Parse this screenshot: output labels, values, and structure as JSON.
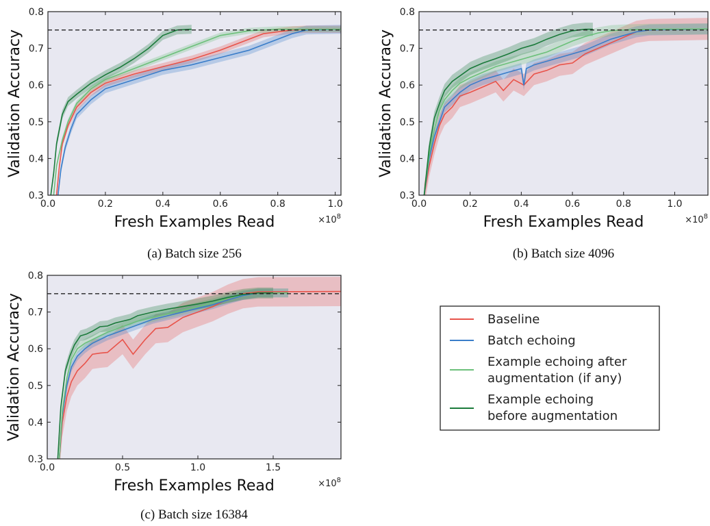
{
  "legend": {
    "items": [
      {
        "label_lines": [
          "Baseline"
        ],
        "color": "#e8534a"
      },
      {
        "label_lines": [
          "Batch echoing"
        ],
        "color": "#3a7dc9"
      },
      {
        "label_lines": [
          "Example echoing after",
          "augmentation (if any)"
        ],
        "color": "#6cc07a"
      },
      {
        "label_lines": [
          "Example echoing",
          "before augmentation"
        ],
        "color": "#1a7a3a"
      }
    ]
  },
  "colors": {
    "background": "#e8e8f1",
    "target_line": "#222222"
  },
  "chart_data": [
    {
      "type": "line",
      "caption": "(a) Batch size 256",
      "xlabel": "Fresh Examples Read",
      "ylabel": "Validation Accuracy",
      "x_exponent": "×10",
      "x_exponent_power": "8",
      "xlim": [
        0.0,
        1.02
      ],
      "ylim": [
        0.3,
        0.8
      ],
      "xticks": [
        0.0,
        0.2,
        0.4,
        0.6,
        0.8,
        1.0
      ],
      "xtick_labels": [
        "0.0",
        "0.2",
        "0.4",
        "0.6",
        "0.8",
        "1.0"
      ],
      "yticks": [
        0.3,
        0.4,
        0.5,
        0.6,
        0.7,
        0.8
      ],
      "ytick_labels": [
        "0.3",
        "0.4",
        "0.5",
        "0.6",
        "0.7",
        "0.8"
      ],
      "target_accuracy": 0.75,
      "series": [
        {
          "color": "#e8534a",
          "x": [
            0.03,
            0.04,
            0.05,
            0.07,
            0.1,
            0.15,
            0.2,
            0.3,
            0.4,
            0.5,
            0.6,
            0.7,
            0.75,
            0.8,
            0.85,
            0.9,
            1.02
          ],
          "y": [
            0.3,
            0.38,
            0.44,
            0.49,
            0.54,
            0.58,
            0.605,
            0.63,
            0.65,
            0.67,
            0.695,
            0.725,
            0.74,
            0.745,
            0.75,
            0.752,
            0.752
          ],
          "band": 0.01
        },
        {
          "color": "#3a7dc9",
          "x": [
            0.035,
            0.045,
            0.06,
            0.08,
            0.1,
            0.15,
            0.2,
            0.3,
            0.4,
            0.5,
            0.6,
            0.7,
            0.8,
            0.85,
            0.9,
            1.02
          ],
          "y": [
            0.3,
            0.37,
            0.43,
            0.48,
            0.52,
            0.56,
            0.59,
            0.615,
            0.64,
            0.655,
            0.675,
            0.695,
            0.725,
            0.74,
            0.75,
            0.752
          ],
          "band": 0.012
        },
        {
          "color": "#6cc07a",
          "x": [
            0.02,
            0.03,
            0.05,
            0.07,
            0.1,
            0.15,
            0.2,
            0.3,
            0.4,
            0.5,
            0.55,
            0.6,
            0.7,
            0.75,
            0.8,
            0.9,
            1.02
          ],
          "y": [
            0.3,
            0.38,
            0.45,
            0.5,
            0.55,
            0.59,
            0.615,
            0.645,
            0.675,
            0.705,
            0.72,
            0.735,
            0.748,
            0.75,
            0.752,
            0.752,
            0.752
          ],
          "band": 0.008
        },
        {
          "color": "#1a7a3a",
          "x": [
            0.01,
            0.02,
            0.03,
            0.05,
            0.07,
            0.1,
            0.15,
            0.2,
            0.25,
            0.3,
            0.35,
            0.4,
            0.45,
            0.5
          ],
          "y": [
            0.3,
            0.36,
            0.44,
            0.52,
            0.555,
            0.575,
            0.605,
            0.628,
            0.648,
            0.672,
            0.7,
            0.735,
            0.75,
            0.752
          ],
          "band": 0.012
        }
      ]
    },
    {
      "type": "line",
      "caption": "(b) Batch size 4096",
      "xlabel": "Fresh Examples Read",
      "ylabel": "Validation Accuracy",
      "x_exponent": "×10",
      "x_exponent_power": "8",
      "xlim": [
        0.0,
        1.13
      ],
      "ylim": [
        0.3,
        0.8
      ],
      "xticks": [
        0.0,
        0.2,
        0.4,
        0.6,
        0.8,
        1.0
      ],
      "xtick_labels": [
        "0.0",
        "0.2",
        "0.4",
        "0.6",
        "0.8",
        "1.0"
      ],
      "yticks": [
        0.3,
        0.4,
        0.5,
        0.6,
        0.7,
        0.8
      ],
      "ytick_labels": [
        "0.3",
        "0.4",
        "0.5",
        "0.6",
        "0.7",
        "0.8"
      ],
      "target_accuracy": 0.75,
      "series": [
        {
          "color": "#e8534a",
          "x": [
            0.02,
            0.04,
            0.06,
            0.08,
            0.1,
            0.13,
            0.16,
            0.2,
            0.25,
            0.3,
            0.33,
            0.37,
            0.41,
            0.45,
            0.5,
            0.55,
            0.6,
            0.65,
            0.7,
            0.75,
            0.8,
            0.85,
            0.9,
            1.13
          ],
          "y": [
            0.3,
            0.38,
            0.44,
            0.49,
            0.52,
            0.54,
            0.57,
            0.58,
            0.595,
            0.61,
            0.585,
            0.615,
            0.6,
            0.63,
            0.64,
            0.655,
            0.66,
            0.685,
            0.7,
            0.715,
            0.73,
            0.745,
            0.75,
            0.753
          ],
          "band": 0.03
        },
        {
          "color": "#3a7dc9",
          "x": [
            0.02,
            0.04,
            0.06,
            0.08,
            0.1,
            0.13,
            0.16,
            0.2,
            0.25,
            0.3,
            0.35,
            0.4,
            0.41,
            0.42,
            0.45,
            0.5,
            0.55,
            0.6,
            0.65,
            0.7,
            0.75,
            0.8,
            0.85,
            0.9,
            1.13
          ],
          "y": [
            0.3,
            0.4,
            0.46,
            0.5,
            0.54,
            0.56,
            0.58,
            0.6,
            0.615,
            0.625,
            0.635,
            0.645,
            0.6,
            0.645,
            0.655,
            0.665,
            0.675,
            0.685,
            0.695,
            0.71,
            0.725,
            0.735,
            0.745,
            0.75,
            0.753
          ],
          "band": 0.015
        },
        {
          "color": "#6cc07a",
          "x": [
            0.02,
            0.04,
            0.06,
            0.08,
            0.1,
            0.13,
            0.16,
            0.2,
            0.25,
            0.3,
            0.35,
            0.4,
            0.45,
            0.5,
            0.55,
            0.6,
            0.65,
            0.7,
            0.75,
            0.8,
            0.9,
            1.13
          ],
          "y": [
            0.3,
            0.41,
            0.48,
            0.53,
            0.56,
            0.585,
            0.605,
            0.62,
            0.635,
            0.65,
            0.66,
            0.67,
            0.68,
            0.69,
            0.705,
            0.72,
            0.732,
            0.742,
            0.748,
            0.75,
            0.752,
            0.753
          ],
          "band": 0.015
        },
        {
          "color": "#1a7a3a",
          "x": [
            0.02,
            0.04,
            0.06,
            0.08,
            0.1,
            0.13,
            0.16,
            0.2,
            0.25,
            0.3,
            0.35,
            0.4,
            0.45,
            0.5,
            0.55,
            0.6,
            0.65,
            0.68
          ],
          "y": [
            0.3,
            0.43,
            0.51,
            0.55,
            0.585,
            0.61,
            0.625,
            0.645,
            0.66,
            0.672,
            0.685,
            0.7,
            0.71,
            0.725,
            0.738,
            0.748,
            0.752,
            0.752
          ],
          "band": 0.018
        }
      ]
    },
    {
      "type": "line",
      "caption": "(c) Batch size 16384",
      "xlabel": "Fresh Examples Read",
      "ylabel": "Validation Accuracy",
      "x_exponent": "×10",
      "x_exponent_power": "8",
      "xlim": [
        0.0,
        1.95
      ],
      "ylim": [
        0.3,
        0.8
      ],
      "xticks": [
        0.0,
        0.5,
        1.0,
        1.5
      ],
      "xtick_labels": [
        "0.0",
        "0.5",
        "1.0",
        "1.5"
      ],
      "yticks": [
        0.3,
        0.4,
        0.5,
        0.6,
        0.7,
        0.8
      ],
      "ytick_labels": [
        "0.3",
        "0.4",
        "0.5",
        "0.6",
        "0.7",
        "0.8"
      ],
      "target_accuracy": 0.75,
      "series": [
        {
          "color": "#e8534a",
          "x": [
            0.08,
            0.1,
            0.13,
            0.16,
            0.2,
            0.25,
            0.3,
            0.35,
            0.4,
            0.5,
            0.57,
            0.65,
            0.72,
            0.8,
            0.9,
            1.0,
            1.1,
            1.2,
            1.3,
            1.4,
            1.95
          ],
          "y": [
            0.3,
            0.4,
            0.47,
            0.51,
            0.54,
            0.56,
            0.585,
            0.588,
            0.59,
            0.625,
            0.585,
            0.625,
            0.655,
            0.658,
            0.685,
            0.7,
            0.715,
            0.735,
            0.75,
            0.755,
            0.756
          ],
          "band": 0.04
        },
        {
          "color": "#3a7dc9",
          "x": [
            0.08,
            0.1,
            0.13,
            0.16,
            0.2,
            0.25,
            0.3,
            0.35,
            0.4,
            0.5,
            0.6,
            0.7,
            0.8,
            0.9,
            1.0,
            1.1,
            1.2,
            1.3,
            1.4,
            1.6
          ],
          "y": [
            0.3,
            0.42,
            0.5,
            0.55,
            0.58,
            0.6,
            0.615,
            0.625,
            0.635,
            0.65,
            0.665,
            0.68,
            0.69,
            0.7,
            0.71,
            0.72,
            0.733,
            0.745,
            0.752,
            0.752
          ],
          "band": 0.012
        },
        {
          "color": "#6cc07a",
          "x": [
            0.08,
            0.1,
            0.13,
            0.16,
            0.2,
            0.25,
            0.3,
            0.35,
            0.4,
            0.5,
            0.6,
            0.7,
            0.8,
            0.9,
            1.0,
            1.1,
            1.2,
            1.3,
            1.4,
            1.6
          ],
          "y": [
            0.3,
            0.43,
            0.52,
            0.57,
            0.6,
            0.615,
            0.625,
            0.635,
            0.645,
            0.66,
            0.675,
            0.685,
            0.695,
            0.705,
            0.715,
            0.725,
            0.737,
            0.748,
            0.752,
            0.752
          ],
          "band": 0.012
        },
        {
          "color": "#1a7a3a",
          "x": [
            0.07,
            0.09,
            0.12,
            0.15,
            0.18,
            0.22,
            0.26,
            0.3,
            0.35,
            0.4,
            0.45,
            0.5,
            0.55,
            0.6,
            0.7,
            0.8,
            0.9,
            1.0,
            1.1,
            1.2,
            1.3,
            1.4,
            1.5
          ],
          "y": [
            0.3,
            0.44,
            0.54,
            0.58,
            0.61,
            0.635,
            0.64,
            0.648,
            0.66,
            0.662,
            0.67,
            0.675,
            0.68,
            0.69,
            0.7,
            0.708,
            0.715,
            0.722,
            0.73,
            0.74,
            0.748,
            0.752,
            0.752
          ],
          "band": 0.015
        }
      ]
    }
  ]
}
